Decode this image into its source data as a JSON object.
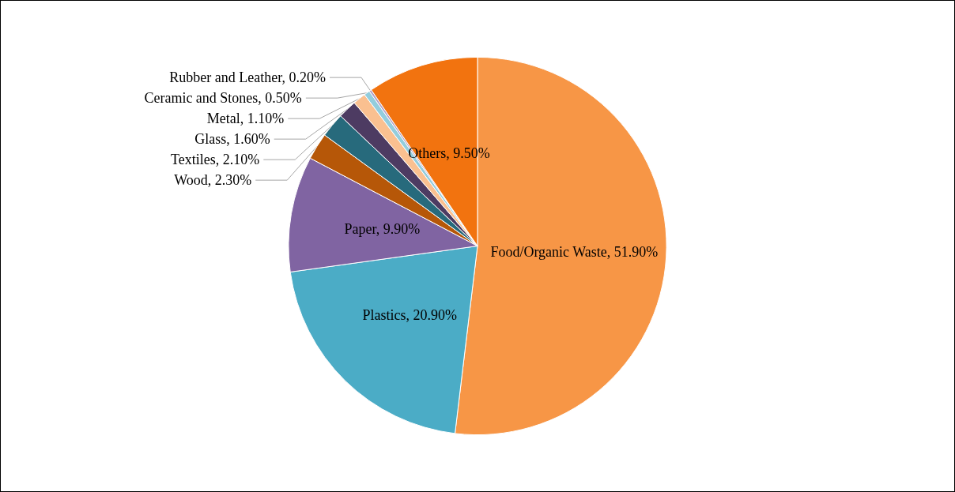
{
  "chart_data": {
    "type": "pie",
    "categories": [
      "Food/Organic Waste",
      "Plastics",
      "Paper",
      "Wood",
      "Textiles",
      "Glass",
      "Metal",
      "Ceramic and Stones",
      "Rubber and Leather",
      "Others"
    ],
    "values": [
      51.9,
      20.9,
      9.9,
      2.3,
      2.1,
      1.6,
      1.1,
      0.5,
      0.2,
      9.5
    ],
    "value_labels": [
      "51.90%",
      "20.90%",
      "9.90%",
      "2.30%",
      "2.10%",
      "1.60%",
      "1.10%",
      "0.50%",
      "0.20%",
      "9.50%"
    ],
    "colors": [
      "#f79646",
      "#4bacc6",
      "#8064a2",
      "#b65708",
      "#276a7c",
      "#4d3b62",
      "#fac090",
      "#93cddd",
      "#b3a2c7",
      "#f2730f"
    ],
    "legend": false
  }
}
